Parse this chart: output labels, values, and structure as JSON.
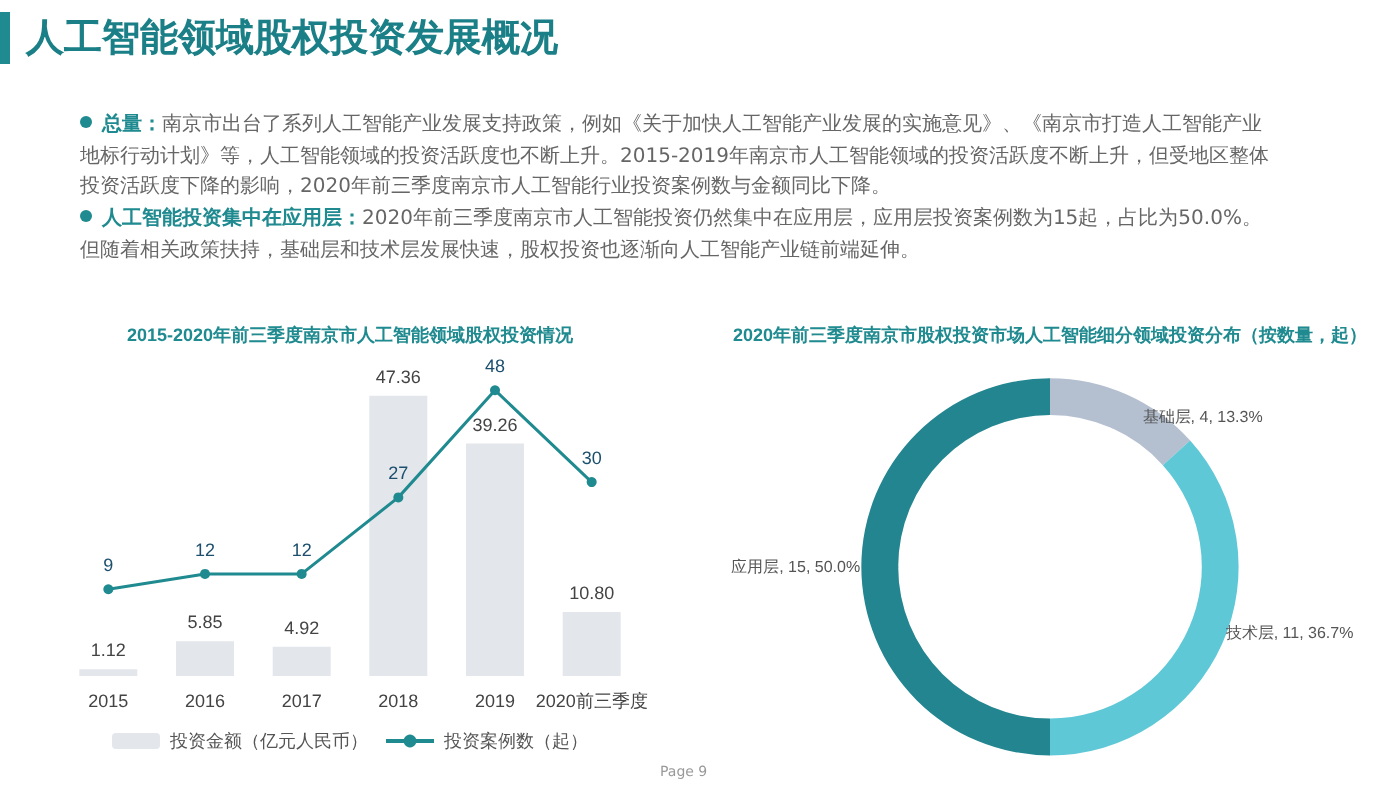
{
  "chart_data": [
    {
      "type": "other",
      "title": "人工智能领域股权投资发展概况",
      "annotations": [
        "总量：南京市出台了系列人工智能产业发展支持政策，例如《关于加快人工智能产业发展的实施意见》、《南京市打造人工智能产业地标行动计划》等，人工智能领域的投资活跃度也不断上升。2015-2019年南京市人工智能领域的投资活跃度不断上升，但受地区整体投资活跃度下降的影响，2020年前三季度南京市人工智能行业投资案例数与金额同比下降。",
        "人工智能投资集中在应用层：2020年前三季度南京市人工智能投资仍然集中在应用层，应用层投资案例数为15起，占比为50.0%。但随着相关政策扶持，基础层和技术层发展快速，股权投资也逐渐向人工智能产业链前端延伸。",
        "Page 9"
      ]
    },
    {
      "type": "bar",
      "title": "2015-2020年前三季度南京市人工智能领域股权投资情况",
      "categories": [
        "2015",
        "2016",
        "2017",
        "2018",
        "2019",
        "2020前三季度"
      ],
      "series": [
        {
          "name": "投资金额（亿元人民币）",
          "color": "#e3e6ea",
          "values": [
            1.12,
            5.85,
            4.92,
            47.36,
            39.26,
            10.8
          ],
          "value_labels": [
            "1.12",
            "5.85",
            "4.92",
            "47.36",
            "39.26",
            "10.80"
          ]
        },
        {
          "name": "投资案例数（起）",
          "type": "line",
          "axis": "y2",
          "color": "#1f8a8f",
          "values": [
            9,
            12,
            12,
            27,
            48,
            30
          ]
        }
      ],
      "data_labels": true,
      "marker": "circle",
      "legend": "bottom"
    },
    {
      "type": "donut",
      "title": "2020年前三季度南京市股权投资市场人工智能细分领域投资分布（按数量，起）",
      "categories": [
        "基础层",
        "技术层",
        "应用层"
      ],
      "values": [
        4,
        11,
        15
      ],
      "colors": [
        "#b4bfd0",
        "#5fc8d6",
        "#22858f"
      ],
      "value_labels": [
        "4, 13.3%",
        "11, 36.7%",
        "15, 50.0%"
      ]
    }
  ]
}
